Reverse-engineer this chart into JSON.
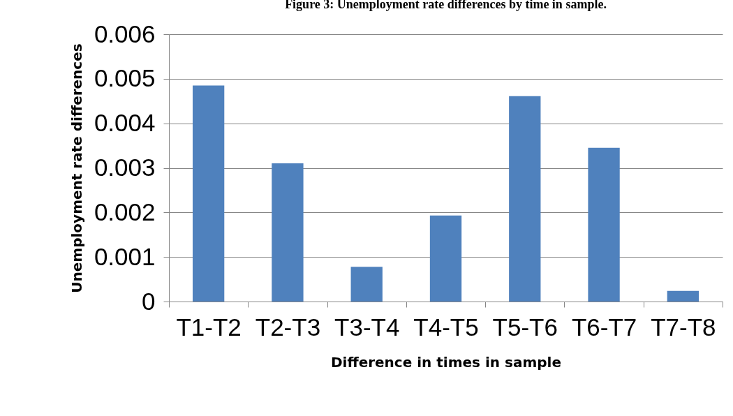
{
  "chart_data": {
    "type": "bar",
    "title": "Figure 3: Unemployment rate differences by time in sample.",
    "xlabel": "Difference in times in sample",
    "ylabel": "Unemployment rate differences",
    "categories": [
      "T1-T2",
      "T2-T3",
      "T3-T4",
      "T4-T5",
      "T5-T6",
      "T6-T7",
      "T7-T8"
    ],
    "values": [
      0.00485,
      0.0031,
      0.00078,
      0.00193,
      0.00461,
      0.00345,
      0.00024
    ],
    "color": "#4f81bd",
    "ylim": [
      0,
      0.006
    ],
    "yticks": [
      0,
      0.001,
      0.002,
      0.003,
      0.004,
      0.005,
      0.006
    ],
    "grid": "y"
  }
}
